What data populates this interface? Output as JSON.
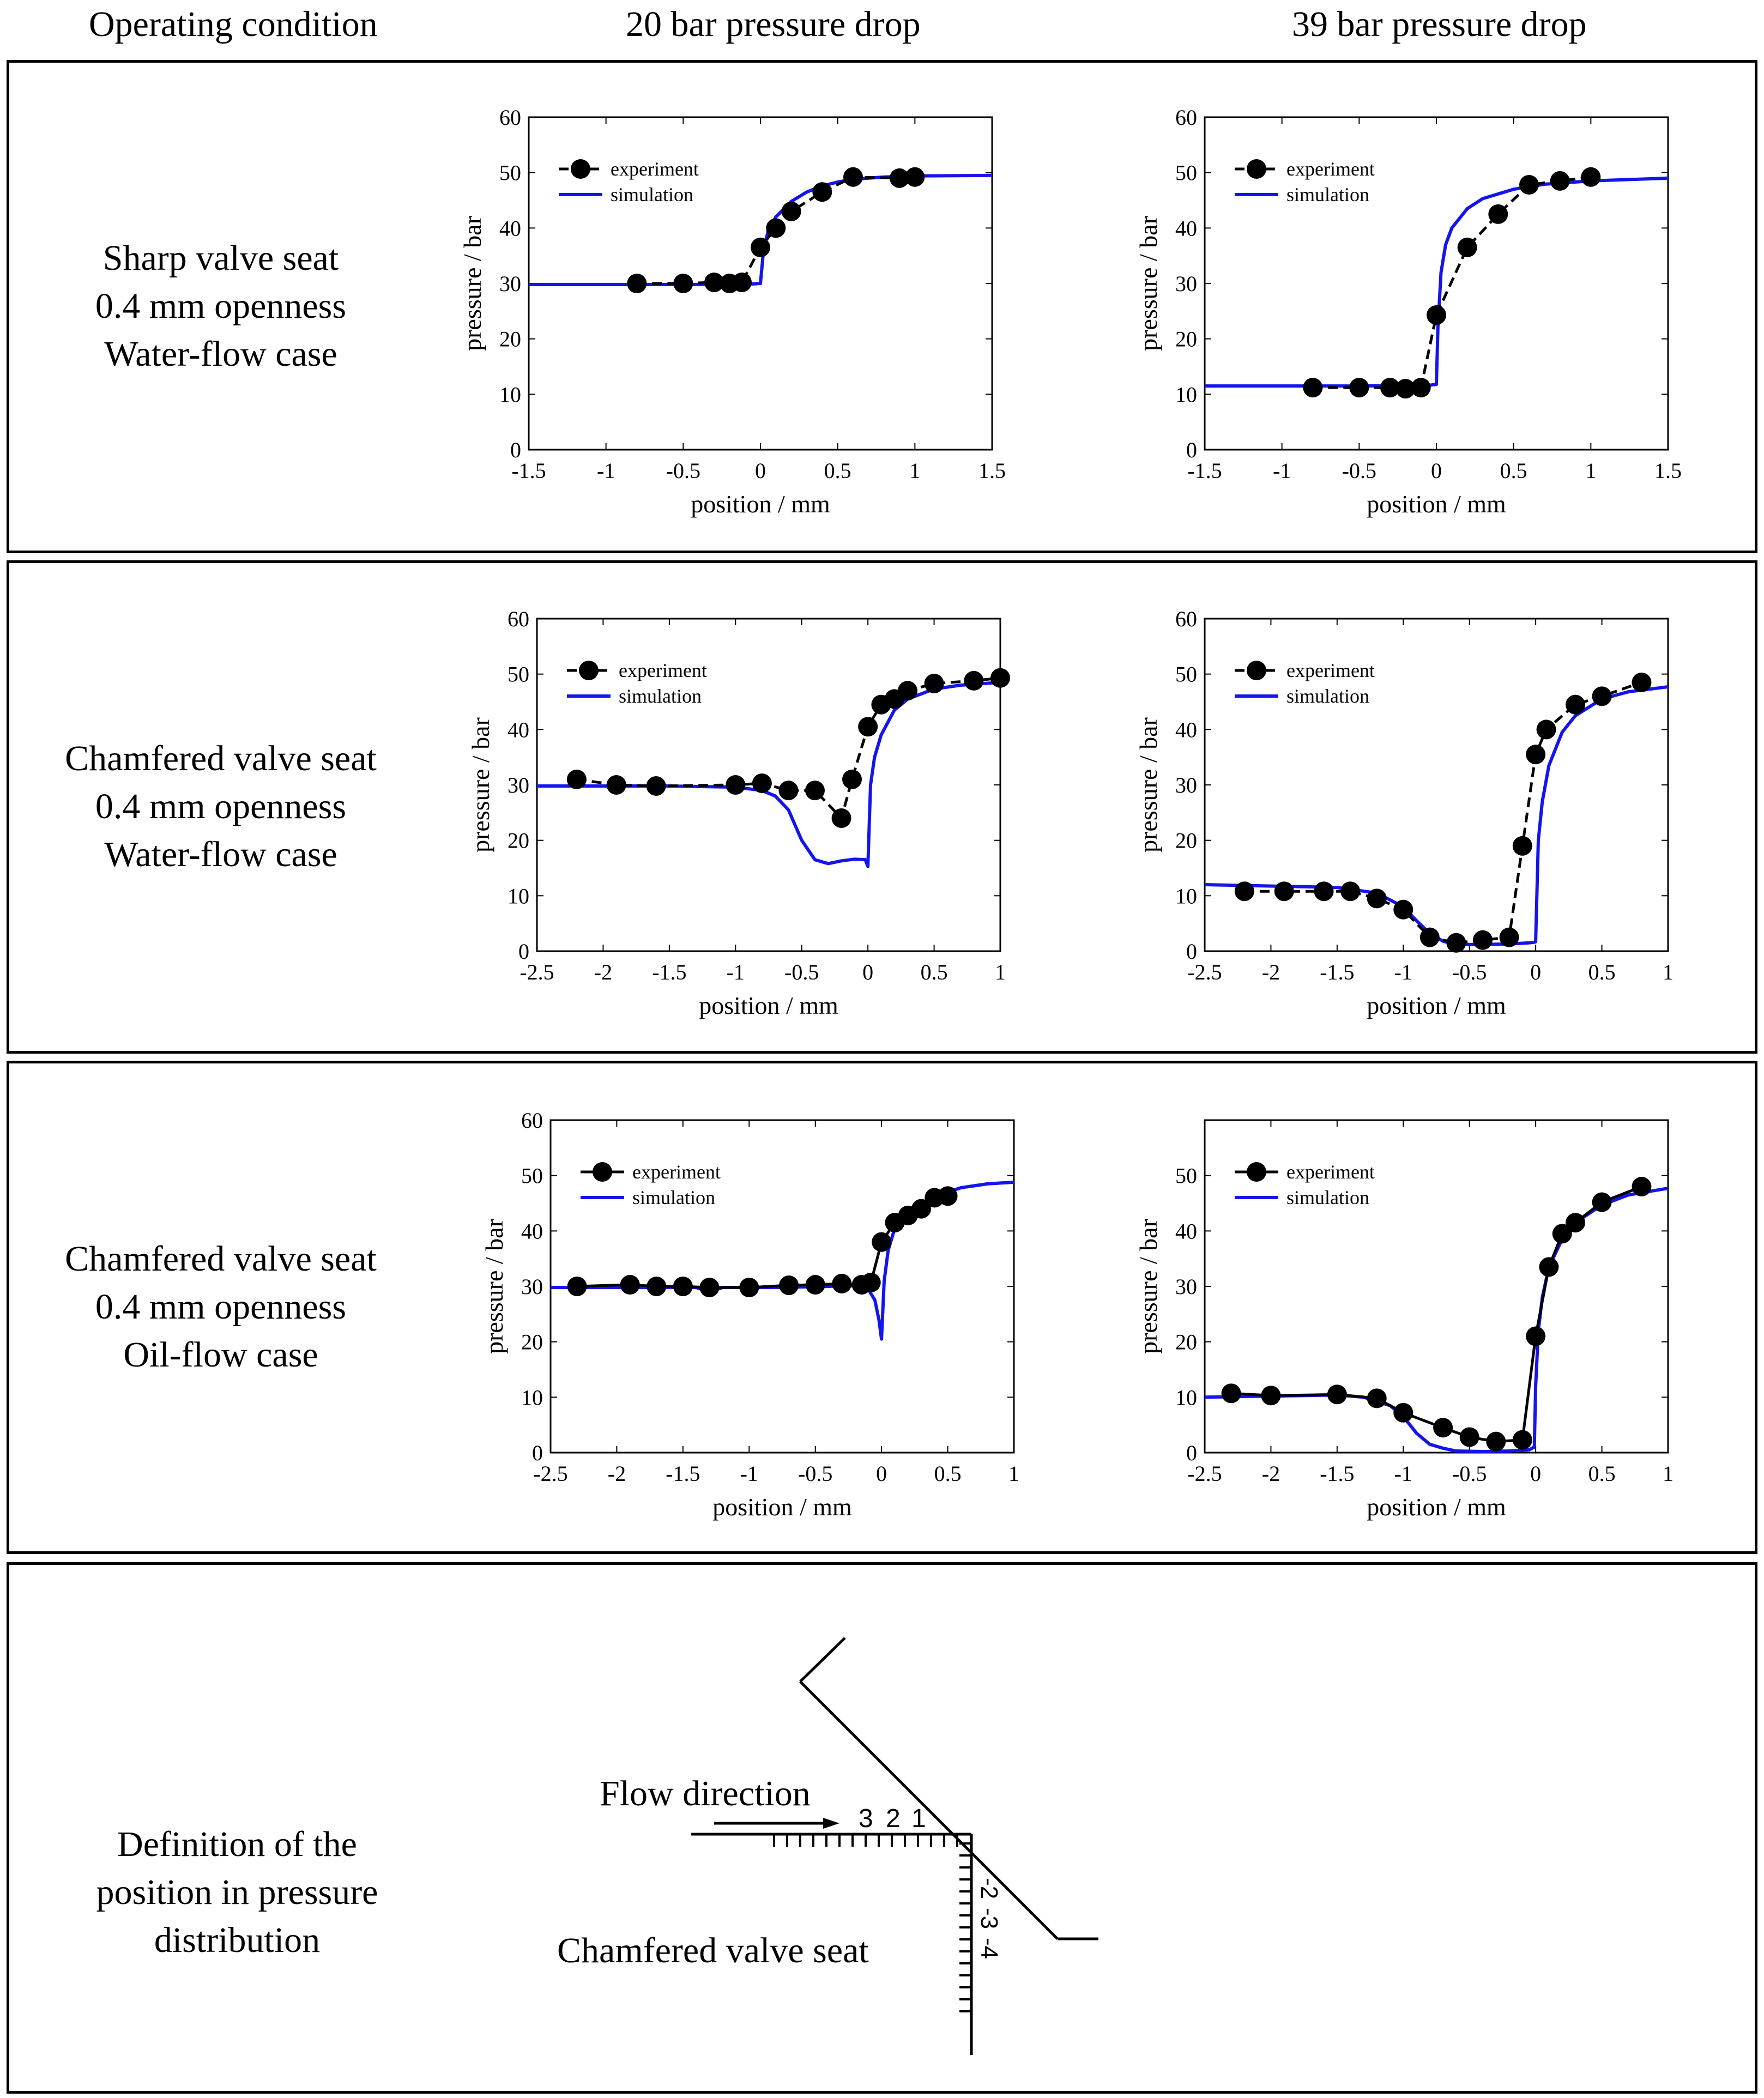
{
  "headers": {
    "condition": "Operating condition",
    "col1": "20 bar pressure drop",
    "col2": "39 bar pressure drop"
  },
  "rows": [
    {
      "lines": [
        "Sharp valve seat",
        "0.4 mm openness",
        "Water-flow case"
      ]
    },
    {
      "lines": [
        "Chamfered valve seat",
        "0.4 mm openness",
        "Water-flow case"
      ]
    },
    {
      "lines": [
        "Chamfered valve seat",
        "0.4 mm openness",
        "Oil-flow case"
      ]
    },
    {
      "lines": [
        "Definition of the",
        "position in pressure",
        "distribution"
      ]
    }
  ],
  "colors": {
    "experiment": "#000000",
    "simulation": "#1414ee"
  },
  "chart_data": [
    {
      "type": "line",
      "title": "Sharp valve seat, 0.4 mm openness, water-flow, 20 bar pressure drop",
      "xlabel": "position / mm",
      "ylabel": "pressure / bar",
      "xlim": [
        -1.5,
        1.5
      ],
      "ylim": [
        0,
        60
      ],
      "xticks": [
        -1.5,
        -1,
        -0.5,
        0,
        0.5,
        1,
        1.5
      ],
      "xtick_labels": [
        "-1.5",
        "-1",
        "-0.5",
        "0",
        "0.5",
        "1",
        "1.5"
      ],
      "yticks": [
        0,
        10,
        20,
        30,
        40,
        50,
        60
      ],
      "ytick_labels": [
        "0",
        "10",
        "20",
        "30",
        "40",
        "50",
        "60"
      ],
      "legend": {
        "position": "top-left",
        "entries": [
          "experiment",
          "simulation"
        ]
      },
      "series": [
        {
          "name": "experiment",
          "style": "dashed-markers",
          "x": [
            -0.8,
            -0.5,
            -0.3,
            -0.2,
            -0.12,
            0,
            0.1,
            0.2,
            0.4,
            0.6,
            0.9,
            1.0
          ],
          "y": [
            30,
            30,
            30.2,
            30,
            30.2,
            36.5,
            40,
            43,
            46.5,
            49.2,
            49,
            49.2
          ]
        },
        {
          "name": "simulation",
          "style": "solid",
          "x": [
            -1.5,
            -0.5,
            -0.05,
            0,
            0.02,
            0.05,
            0.1,
            0.2,
            0.3,
            0.4,
            0.5,
            0.6,
            0.8,
            1.0,
            1.5
          ],
          "y": [
            29.8,
            29.8,
            29.9,
            30,
            36,
            39.5,
            42,
            44.8,
            46.5,
            47.6,
            48.3,
            48.8,
            49.2,
            49.4,
            49.5
          ]
        }
      ]
    },
    {
      "type": "line",
      "title": "Sharp valve seat, 0.4 mm openness, water-flow, 39 bar pressure drop",
      "xlabel": "position / mm",
      "ylabel": "pressure / bar",
      "xlim": [
        -1.5,
        1.5
      ],
      "ylim": [
        0,
        60
      ],
      "xticks": [
        -1.5,
        -1,
        -0.5,
        0,
        0.5,
        1,
        1.5
      ],
      "xtick_labels": [
        "-1.5",
        "-1",
        "-0.5",
        "0",
        "0.5",
        "1",
        "1.5"
      ],
      "yticks": [
        0,
        10,
        20,
        30,
        40,
        50,
        60
      ],
      "ytick_labels": [
        "0",
        "10",
        "20",
        "30",
        "40",
        "50",
        "60"
      ],
      "legend": {
        "position": "top-left",
        "entries": [
          "experiment",
          "simulation"
        ]
      },
      "series": [
        {
          "name": "experiment",
          "style": "dashed-markers",
          "x": [
            -0.8,
            -0.5,
            -0.3,
            -0.2,
            -0.1,
            0,
            0.2,
            0.4,
            0.6,
            0.8,
            1.0
          ],
          "y": [
            11.2,
            11.2,
            11.2,
            11,
            11.2,
            24.3,
            36.5,
            42.5,
            47.8,
            48.5,
            49.2
          ]
        },
        {
          "name": "simulation",
          "style": "solid",
          "x": [
            -1.5,
            -0.5,
            -0.05,
            0,
            0.01,
            0.03,
            0.06,
            0.1,
            0.2,
            0.3,
            0.5,
            0.7,
            1.0,
            1.5
          ],
          "y": [
            11.5,
            11.5,
            11.6,
            11.8,
            22,
            32,
            37,
            40,
            43.5,
            45.3,
            47,
            47.9,
            48.5,
            49
          ]
        }
      ]
    },
    {
      "type": "line",
      "title": "Chamfered valve seat, 0.4 mm openness, water-flow, 20 bar pressure drop",
      "xlabel": "position / mm",
      "ylabel": "pressure / bar",
      "xlim": [
        -2.5,
        1
      ],
      "ylim": [
        0,
        60
      ],
      "xticks": [
        -2.5,
        -2,
        -1.5,
        -1,
        -0.5,
        0,
        0.5,
        1
      ],
      "xtick_labels": [
        "-2.5",
        "-2",
        "-1.5",
        "-1",
        "-0.5",
        "0",
        "0.5",
        "1"
      ],
      "yticks": [
        0,
        10,
        20,
        30,
        40,
        50,
        60
      ],
      "ytick_labels": [
        "0",
        "10",
        "20",
        "30",
        "40",
        "50",
        "60"
      ],
      "legend": {
        "position": "top-left",
        "entries": [
          "experiment",
          "simulation"
        ]
      },
      "series": [
        {
          "name": "experiment",
          "style": "dashed-markers",
          "x": [
            -2.2,
            -1.9,
            -1.6,
            -1.0,
            -0.8,
            -0.6,
            -0.4,
            -0.2,
            -0.12,
            0,
            0.1,
            0.2,
            0.3,
            0.5,
            0.8,
            1.0
          ],
          "y": [
            31,
            30,
            29.8,
            30,
            30.3,
            29,
            29,
            24,
            31,
            40.5,
            44.5,
            45.5,
            47,
            48.3,
            48.8,
            49.3
          ]
        },
        {
          "name": "simulation",
          "style": "solid",
          "x": [
            -2.5,
            -1.5,
            -1.0,
            -0.8,
            -0.7,
            -0.6,
            -0.5,
            -0.4,
            -0.3,
            -0.2,
            -0.1,
            -0.02,
            0,
            0.02,
            0.05,
            0.1,
            0.2,
            0.3,
            0.5,
            0.7,
            1.0
          ],
          "y": [
            29.8,
            29.8,
            29.6,
            29,
            28,
            25.5,
            20,
            16.5,
            15.8,
            16.3,
            16.6,
            16.5,
            15.3,
            30,
            35,
            39,
            43.5,
            45.5,
            47.3,
            48,
            48.5
          ]
        }
      ]
    },
    {
      "type": "line",
      "title": "Chamfered valve seat, 0.4 mm openness, water-flow, 39 bar pressure drop",
      "xlabel": "position / mm",
      "ylabel": "pressure / bar",
      "xlim": [
        -2.5,
        1
      ],
      "ylim": [
        0,
        60
      ],
      "xticks": [
        -2.5,
        -2,
        -1.5,
        -1,
        -0.5,
        0,
        0.5,
        1
      ],
      "xtick_labels": [
        "-2.5",
        "-2",
        "-1.5",
        "-1",
        "-0.5",
        "0",
        "0.5",
        "1"
      ],
      "yticks": [
        0,
        10,
        20,
        30,
        40,
        50,
        60
      ],
      "ytick_labels": [
        "0",
        "10",
        "20",
        "30",
        "40",
        "50",
        "60"
      ],
      "legend": {
        "position": "top-left",
        "entries": [
          "experiment",
          "simulation"
        ]
      },
      "series": [
        {
          "name": "experiment",
          "style": "dashed-markers",
          "x": [
            -2.2,
            -1.9,
            -1.6,
            -1.4,
            -1.2,
            -1.0,
            -0.8,
            -0.6,
            -0.4,
            -0.2,
            -0.1,
            0,
            0.08,
            0.3,
            0.5,
            0.8
          ],
          "y": [
            10.8,
            10.8,
            10.8,
            10.8,
            9.5,
            7.5,
            2.5,
            1.5,
            2,
            2.5,
            19,
            35.5,
            40,
            44.5,
            46,
            48.5
          ]
        },
        {
          "name": "simulation",
          "style": "solid",
          "x": [
            -2.5,
            -1.5,
            -1.2,
            -1.0,
            -0.9,
            -0.8,
            -0.7,
            -0.6,
            -0.4,
            -0.2,
            -0.05,
            -0.01,
            0,
            0.02,
            0.05,
            0.1,
            0.2,
            0.3,
            0.5,
            0.7,
            1.0
          ],
          "y": [
            12,
            11.5,
            10.5,
            8,
            5.5,
            3.2,
            1.8,
            1.2,
            1.2,
            1.3,
            1.5,
            1.6,
            1.7,
            20,
            27,
            33.5,
            39.5,
            42.5,
            45.5,
            46.8,
            47.7
          ]
        }
      ]
    },
    {
      "type": "line",
      "title": "Chamfered valve seat, 0.4 mm openness, oil-flow, 20 bar pressure drop",
      "xlabel": "position / mm",
      "ylabel": "pressure / bar",
      "xlim": [
        -2.5,
        1
      ],
      "ylim": [
        0,
        60
      ],
      "xticks": [
        -2.5,
        -2,
        -1.5,
        -1,
        -0.5,
        0,
        0.5,
        1
      ],
      "xtick_labels": [
        "-2.5",
        "-2",
        "-1.5",
        "-1",
        "-0.5",
        "0",
        "0.5",
        "1"
      ],
      "yticks": [
        0,
        10,
        20,
        30,
        40,
        50,
        60
      ],
      "ytick_labels": [
        "0",
        "10",
        "20",
        "30",
        "40",
        "50",
        "60"
      ],
      "legend": {
        "position": "top-left",
        "entries": [
          "experiment",
          "simulation"
        ]
      },
      "series": [
        {
          "name": "experiment",
          "style": "solid-markers",
          "x": [
            -2.3,
            -1.9,
            -1.7,
            -1.5,
            -1.3,
            -1.0,
            -0.7,
            -0.5,
            -0.3,
            -0.15,
            -0.08,
            0,
            0.1,
            0.2,
            0.3,
            0.4,
            0.5
          ],
          "y": [
            30,
            30.3,
            30,
            30,
            29.8,
            29.8,
            30.2,
            30.3,
            30.5,
            30.3,
            30.7,
            38,
            41.5,
            42.8,
            44,
            46,
            46.3
          ]
        },
        {
          "name": "simulation",
          "style": "solid",
          "x": [
            -2.5,
            -1.4,
            -1.3,
            -1.2,
            -0.8,
            -0.4,
            -0.2,
            -0.1,
            -0.05,
            -0.02,
            0,
            0.02,
            0.05,
            0.1,
            0.2,
            0.3,
            0.4,
            0.5,
            0.6,
            0.8,
            1.0
          ],
          "y": [
            29.8,
            29.8,
            29,
            29.8,
            29.8,
            30,
            30.1,
            29.5,
            27.5,
            24,
            20.5,
            31,
            36.5,
            40.5,
            43,
            44.8,
            46,
            47,
            47.8,
            48.5,
            48.8
          ]
        }
      ]
    },
    {
      "type": "line",
      "title": "Chamfered valve seat, 0.4 mm openness, oil-flow, 39 bar pressure drop",
      "xlabel": "position / mm",
      "ylabel": "pressure / bar",
      "xlim": [
        -2.5,
        1
      ],
      "ylim": [
        0,
        60
      ],
      "xticks": [
        -2.5,
        -2,
        -1.5,
        -1,
        -0.5,
        0,
        0.5,
        1
      ],
      "xtick_labels": [
        "-2.5",
        "-2",
        "-1.5",
        "-1",
        "-0.5",
        "0",
        "0.5",
        "1"
      ],
      "yticks": [
        0,
        10,
        20,
        30,
        40,
        50
      ],
      "ytick_labels": [
        "0",
        "10",
        "20",
        "30",
        "40",
        "50"
      ],
      "legend": {
        "position": "top-left",
        "entries": [
          "experiment",
          "simulation"
        ]
      },
      "series": [
        {
          "name": "experiment",
          "style": "solid-markers",
          "x": [
            -2.3,
            -2.0,
            -1.5,
            -1.2,
            -1.0,
            -0.7,
            -0.5,
            -0.3,
            -0.1,
            0,
            0.1,
            0.2,
            0.3,
            0.5,
            0.8
          ],
          "y": [
            10.7,
            10.3,
            10.5,
            9.8,
            7.2,
            4.5,
            2.8,
            2,
            2.3,
            21,
            33.5,
            39.5,
            41.5,
            45.2,
            48
          ]
        },
        {
          "name": "simulation",
          "style": "solid",
          "x": [
            -2.5,
            -1.5,
            -1.3,
            -1.1,
            -1.0,
            -0.9,
            -0.8,
            -0.7,
            -0.6,
            -0.4,
            -0.2,
            -0.05,
            -0.01,
            0,
            0.02,
            0.05,
            0.1,
            0.2,
            0.3,
            0.5,
            0.7,
            1.0
          ],
          "y": [
            10,
            10.4,
            10,
            8.5,
            6.5,
            3.5,
            1.5,
            0.8,
            0.3,
            0.2,
            0.3,
            0.5,
            1,
            12,
            22,
            28,
            33.5,
            38.5,
            41.5,
            44.7,
            46.5,
            47.7
          ]
        }
      ]
    }
  ],
  "diagram": {
    "flow_label": "Flow direction",
    "seat_label": "Chamfered valve seat",
    "h_marks": [
      "3",
      "2",
      "1"
    ],
    "v_marks": [
      "-2",
      "-3",
      "-4"
    ]
  }
}
